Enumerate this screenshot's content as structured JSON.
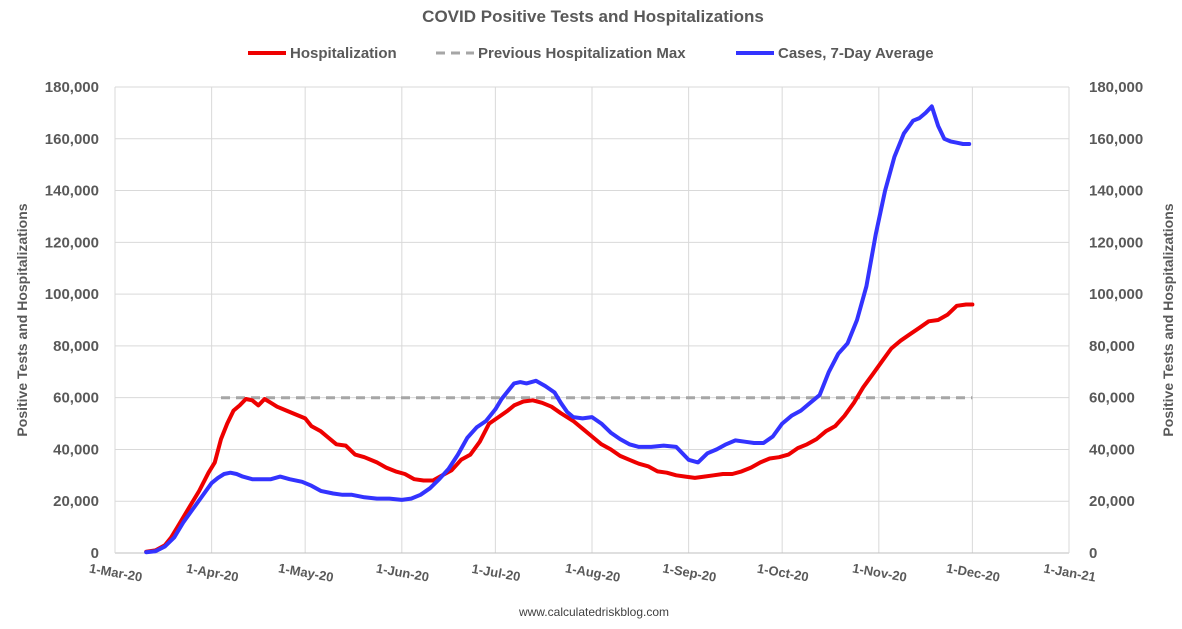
{
  "chart_data": {
    "type": "line",
    "title": "COVID Positive Tests and Hospitalizations",
    "ylabel_left": "Positive Tests and Hospitalizations",
    "ylabel_right": "Positive Tests and Hospitalizations",
    "source": "www.calculatedriskblog.com",
    "ylim": [
      0,
      180000
    ],
    "yticks": [
      0,
      20000,
      40000,
      60000,
      80000,
      100000,
      120000,
      140000,
      160000,
      180000
    ],
    "ytick_labels": [
      "0",
      "20,000",
      "40,000",
      "60,000",
      "80,000",
      "100,000",
      "120,000",
      "140,000",
      "160,000",
      "180,000"
    ],
    "xlim_days": [
      0,
      306
    ],
    "xticks_days": [
      0,
      31,
      61,
      92,
      122,
      153,
      184,
      214,
      245,
      275,
      306
    ],
    "xtick_labels": [
      "1-Mar-20",
      "1-Apr-20",
      "1-May-20",
      "1-Jun-20",
      "1-Jul-20",
      "1-Aug-20",
      "1-Sep-20",
      "1-Oct-20",
      "1-Nov-20",
      "1-Dec-20",
      "1-Jan-21"
    ],
    "legend_position": "top",
    "grid": true,
    "series": [
      {
        "name": "Hospitalization",
        "color": "#ee0000",
        "style": "solid",
        "x": [
          10,
          13,
          16,
          18,
          20,
          22,
          24,
          27,
          30,
          32,
          34,
          36,
          38,
          40,
          42,
          44,
          46,
          48,
          50,
          52,
          55,
          58,
          61,
          63,
          66,
          68,
          71,
          74,
          77,
          80,
          84,
          87,
          90,
          93,
          96,
          99,
          102,
          105,
          108,
          111,
          114,
          117,
          120,
          123,
          126,
          128,
          131,
          134,
          137,
          140,
          143,
          147,
          150,
          153,
          156,
          159,
          162,
          165,
          168,
          171,
          174,
          177,
          180,
          183,
          186,
          189,
          192,
          195,
          198,
          201,
          204,
          207,
          210,
          213,
          216,
          219,
          222,
          225,
          228,
          231,
          234,
          237,
          240,
          243,
          246,
          249,
          252,
          255,
          258,
          261,
          264,
          267,
          270,
          273,
          275
        ],
        "y": [
          500,
          1000,
          3000,
          6000,
          10000,
          14000,
          18000,
          24000,
          31000,
          35000,
          44000,
          50000,
          55000,
          57000,
          59500,
          59000,
          57000,
          59500,
          58000,
          56500,
          55000,
          53500,
          52000,
          49000,
          47000,
          45000,
          42000,
          41500,
          38000,
          37000,
          35000,
          33000,
          31500,
          30500,
          28500,
          28000,
          28000,
          30000,
          32000,
          36000,
          38000,
          43000,
          50000,
          52500,
          55000,
          57000,
          58500,
          59000,
          58000,
          56500,
          54000,
          51000,
          48000,
          45000,
          42000,
          40000,
          37500,
          36000,
          34500,
          33500,
          31500,
          31000,
          30000,
          29500,
          29000,
          29500,
          30000,
          30500,
          30500,
          31500,
          33000,
          35000,
          36500,
          37000,
          38000,
          40500,
          42000,
          44000,
          47000,
          49000,
          53000,
          58000,
          64000,
          69000,
          74000,
          79000,
          82000,
          84500,
          87000,
          89500,
          90000,
          92000,
          95500,
          96000,
          96000
        ]
      },
      {
        "name": "Previous Hospitalization Max",
        "color": "#a6a6a6",
        "style": "dashed",
        "x": [
          34,
          275
        ],
        "y": [
          60000,
          60000
        ]
      },
      {
        "name": "Cases, 7-Day Average",
        "color": "#3333ff",
        "style": "solid",
        "x": [
          10,
          13,
          16,
          19,
          22,
          25,
          28,
          31,
          33,
          35,
          37,
          39,
          41,
          44,
          47,
          50,
          53,
          56,
          60,
          63,
          66,
          70,
          73,
          76,
          80,
          84,
          88,
          92,
          95,
          98,
          101,
          104,
          107,
          110,
          113,
          116,
          119,
          122,
          124,
          126,
          128,
          130,
          132,
          135,
          138,
          141,
          143,
          145,
          147,
          150,
          153,
          156,
          159,
          162,
          165,
          168,
          172,
          176,
          180,
          184,
          187,
          190,
          193,
          196,
          199,
          202,
          205,
          208,
          211,
          214,
          217,
          220,
          223,
          226,
          229,
          232,
          235,
          238,
          241,
          244,
          247,
          250,
          253,
          256,
          258,
          260,
          262,
          264,
          266,
          268,
          270,
          272,
          274
        ],
        "y": [
          300,
          700,
          2500,
          6000,
          12000,
          17000,
          22000,
          27000,
          29000,
          30500,
          31000,
          30500,
          29500,
          28500,
          28500,
          28500,
          29500,
          28500,
          27500,
          26000,
          24000,
          23000,
          22500,
          22500,
          21500,
          21000,
          21000,
          20500,
          21000,
          22500,
          25000,
          28500,
          32500,
          38000,
          44500,
          48500,
          51000,
          55500,
          59500,
          62500,
          65500,
          66000,
          65500,
          66500,
          64500,
          62000,
          58000,
          54500,
          52500,
          52000,
          52500,
          50000,
          46500,
          44000,
          42000,
          41000,
          41000,
          41500,
          41000,
          36000,
          35000,
          38500,
          40000,
          42000,
          43500,
          43000,
          42500,
          42500,
          45000,
          50000,
          53000,
          55000,
          58000,
          61000,
          70000,
          77000,
          81000,
          90000,
          103000,
          123000,
          140000,
          153000,
          162000,
          167000,
          168000,
          170000,
          172500,
          165000,
          160000,
          159000,
          158500,
          158000,
          158000
        ]
      }
    ]
  }
}
